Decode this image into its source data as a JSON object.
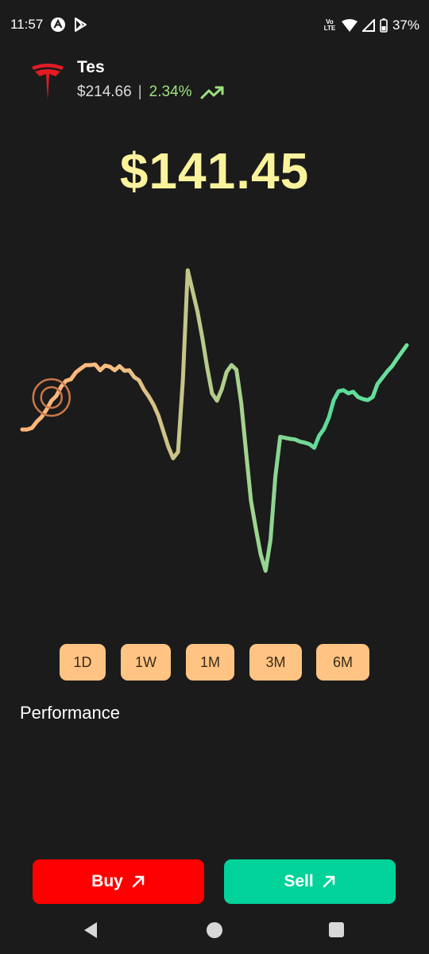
{
  "status_bar": {
    "time": "11:57",
    "volte_top": "Vo",
    "volte_bottom": "LTE",
    "battery": "37%"
  },
  "stock": {
    "name": "Tes",
    "previous_price": "$214.66",
    "change_percent": "2.34%",
    "current_price": "$141.45"
  },
  "chart_data": {
    "type": "line",
    "title": "",
    "xlabel": "",
    "ylabel": "",
    "series": [
      {
        "values": [
          8,
          8,
          8.3,
          9.5,
          10.4,
          11.8,
          13.5,
          14.4,
          16.2,
          17.3,
          17.6,
          18.9,
          19.6,
          20.3,
          20.3,
          20.4,
          19.3,
          20.2,
          20,
          19.3,
          20.1,
          19.2,
          19.3,
          18,
          17.4,
          15.6,
          14.3,
          12.7,
          10.6,
          7.6,
          4.7,
          2.5,
          3.7,
          17.5,
          38.4,
          34.5,
          30.5,
          25.5,
          19.8,
          14.9,
          13.5,
          15.7,
          19,
          20.3,
          19.4,
          13,
          3.6,
          -5.6,
          -11,
          -15.9,
          -19,
          -13.1,
          -1,
          6.6,
          6.4,
          6.2,
          6.1,
          5.7,
          5.5,
          5.2,
          4.5,
          6.8,
          8.1,
          10.3,
          13.6,
          15.3,
          15.5,
          14.9,
          15.2,
          14.2,
          13.8,
          13.6,
          14.2,
          16.7,
          17.9,
          19.1,
          20.1,
          21.5,
          22.8,
          24.1
        ]
      }
    ],
    "colors": [
      "#ffb47a",
      "#ffbc80",
      "#c8c488",
      "#9fd48f",
      "#5adb9a",
      "#6fe19b"
    ]
  },
  "timeframes": [
    "1D",
    "1W",
    "1M",
    "3M",
    "6M"
  ],
  "performance_title": "Performance",
  "actions": {
    "buy": "Buy",
    "sell": "Sell"
  }
}
